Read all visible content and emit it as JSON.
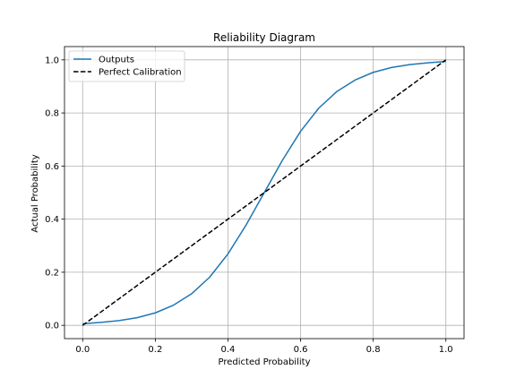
{
  "chart_data": {
    "type": "line",
    "title": "Reliability Diagram",
    "xlabel": "Predicted Probability",
    "ylabel": "Actual Probability",
    "xlim": [
      -0.05,
      1.05
    ],
    "ylim": [
      -0.05,
      1.05
    ],
    "xticks": [
      "0.0",
      "0.2",
      "0.4",
      "0.6",
      "0.8",
      "1.0"
    ],
    "yticks": [
      "0.0",
      "0.2",
      "0.4",
      "0.6",
      "0.8",
      "1.0"
    ],
    "grid": true,
    "legend_position": "top-left",
    "series": [
      {
        "name": "Outputs",
        "color": "#1f77b4",
        "style": "solid",
        "x": [
          0.0,
          0.05,
          0.1,
          0.15,
          0.2,
          0.25,
          0.3,
          0.35,
          0.4,
          0.45,
          0.5,
          0.55,
          0.6,
          0.65,
          0.7,
          0.75,
          0.8,
          0.85,
          0.9,
          0.95,
          1.0
        ],
        "y": [
          0.006,
          0.011,
          0.018,
          0.029,
          0.047,
          0.076,
          0.119,
          0.182,
          0.269,
          0.378,
          0.5,
          0.622,
          0.731,
          0.818,
          0.881,
          0.924,
          0.953,
          0.971,
          0.982,
          0.989,
          0.994
        ]
      },
      {
        "name": "Perfect Calibration",
        "color": "#000000",
        "style": "dashed",
        "x": [
          0.0,
          1.0
        ],
        "y": [
          0.0,
          1.0
        ]
      }
    ]
  }
}
